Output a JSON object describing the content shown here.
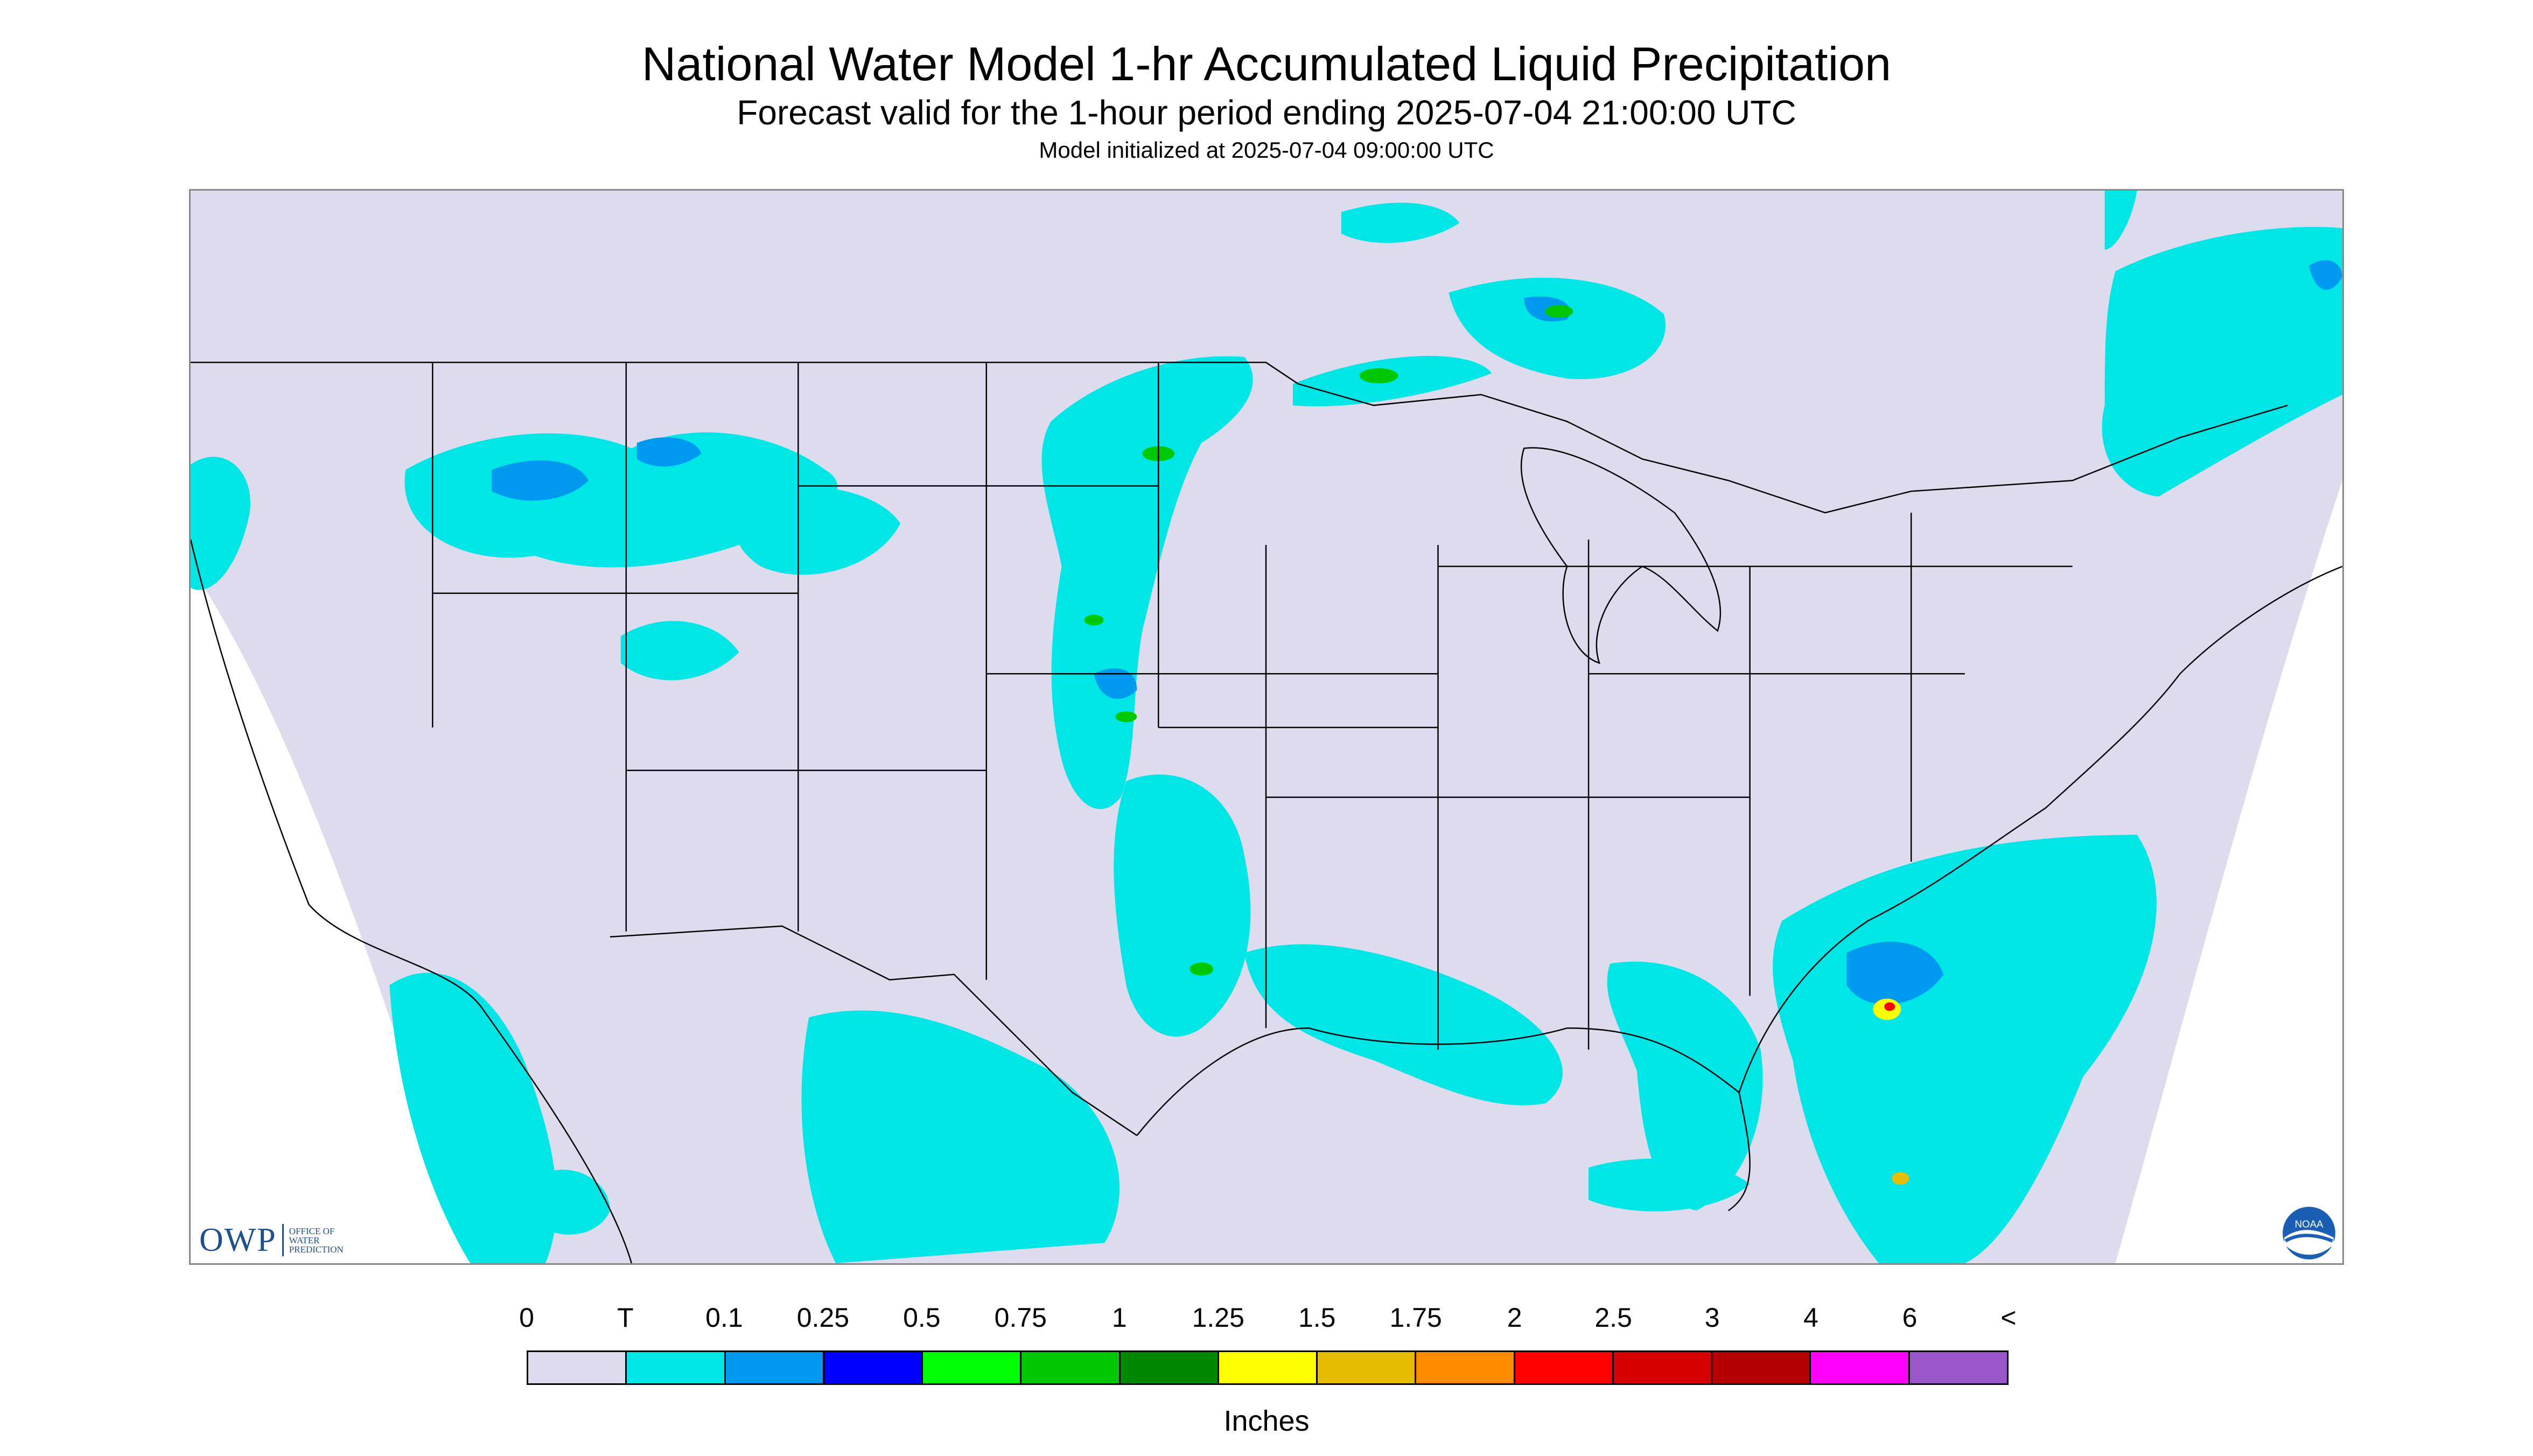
{
  "header": {
    "title": "National Water Model 1-hr Accumulated Liquid Precipitation",
    "subtitle": "Forecast valid for the 1-hour period ending 2025-07-04 21:00:00 UTC",
    "init": "Model initialized at 2025-07-04 09:00:00 UTC"
  },
  "logos": {
    "owp_text": "OWP",
    "owp_line1": "OFFICE OF",
    "owp_line2": "WATER",
    "owp_line3": "PREDICTION",
    "noaa_text": "NOAA"
  },
  "legend": {
    "tick_labels": [
      "0",
      "T",
      "0.1",
      "0.25",
      "0.5",
      "0.75",
      "1",
      "1.25",
      "1.5",
      "1.75",
      "2",
      "2.5",
      "3",
      "4",
      "6",
      "<"
    ],
    "colors": [
      "#dcdcee",
      "#00e5e5",
      "#0099f0",
      "#0000ff",
      "#00ff00",
      "#00c800",
      "#008800",
      "#ffff00",
      "#e6be00",
      "#ff8c00",
      "#ff0000",
      "#d70000",
      "#b40000",
      "#ff00ff",
      "#9955cc"
    ],
    "units": "Inches"
  },
  "map": {
    "background_color": "#dcdcee",
    "outside_color": "#ffffff",
    "boundary_color": "#000000"
  }
}
